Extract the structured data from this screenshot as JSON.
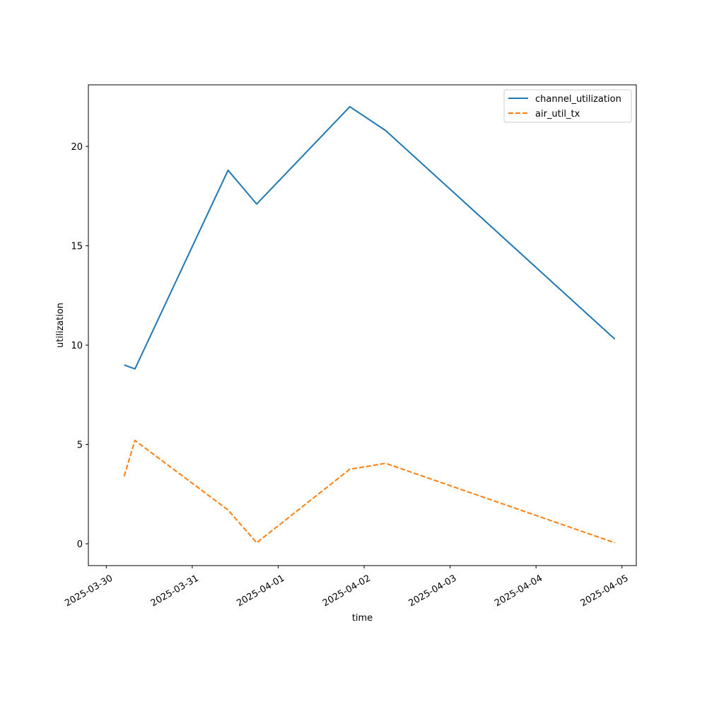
{
  "chart_data": {
    "type": "line",
    "title": "",
    "xlabel": "time",
    "ylabel": "utilization",
    "x": [
      "2025-03-30 05:00",
      "2025-03-30 08:00",
      "2025-03-31 10:00",
      "2025-03-31 18:00",
      "2025-04-01 20:00",
      "2025-04-02 06:00",
      "2025-04-04 22:00"
    ],
    "series": [
      {
        "name": "channel_utilization",
        "values": [
          9.0,
          8.8,
          18.8,
          17.1,
          22.0,
          20.8,
          10.3
        ],
        "color": "#1f77b4",
        "dash": "solid"
      },
      {
        "name": "air_util_tx",
        "values": [
          3.4,
          5.2,
          1.7,
          0.05,
          3.75,
          4.05,
          0.05
        ],
        "color": "#ff7f0e",
        "dash": "dashed"
      }
    ],
    "xlim": [
      "2025-03-29 19:00",
      "2025-04-05 04:00"
    ],
    "ylim": [
      -1.1,
      23.1
    ],
    "xticks": [
      "2025-03-30",
      "2025-03-31",
      "2025-04-01",
      "2025-04-02",
      "2025-04-03",
      "2025-04-04",
      "2025-04-05"
    ],
    "yticks": [
      0,
      5,
      10,
      15,
      20
    ],
    "grid": false,
    "legend": "upper-right"
  }
}
